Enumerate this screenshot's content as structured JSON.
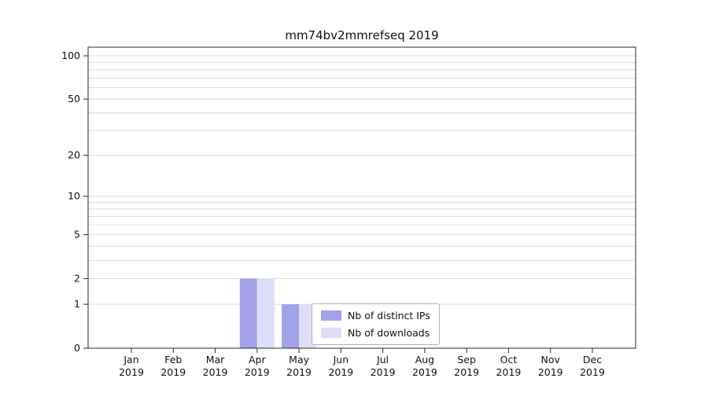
{
  "title": "mm74bv2mmrefseq 2019",
  "chart_data": {
    "type": "bar",
    "title": "mm74bv2mmrefseq 2019",
    "categories": [
      "Jan",
      "Feb",
      "Mar",
      "Apr",
      "May",
      "Jun",
      "Jul",
      "Aug",
      "Sep",
      "Oct",
      "Nov",
      "Dec"
    ],
    "category_year": "2019",
    "series": [
      {
        "name": "Nb of distinct IPs",
        "color": "#a2a2e8",
        "values": [
          0,
          0,
          0,
          2,
          1,
          0,
          0,
          0,
          0,
          0,
          0,
          0
        ]
      },
      {
        "name": "Nb of downloads",
        "color": "#dedefb",
        "values": [
          0,
          0,
          0,
          2,
          1,
          0,
          0,
          0,
          0,
          0,
          0,
          0
        ]
      }
    ],
    "y_ticks": [
      0,
      1,
      2,
      5,
      10,
      20,
      50,
      100
    ],
    "minor_gridlines": [
      3,
      4,
      6,
      7,
      8,
      9,
      30,
      40,
      60,
      70,
      80,
      90
    ],
    "scale": "log1p",
    "ylim": [
      0,
      100
    ],
    "grid": true,
    "legend_position": "lower-center-inside"
  },
  "legend": {
    "items": [
      {
        "label": "Nb of distinct IPs",
        "color": "#a2a2e8"
      },
      {
        "label": "Nb of downloads",
        "color": "#dedefb"
      }
    ]
  },
  "colors": {
    "grid": "#dcdcdc",
    "frame": "#2a2a2a",
    "tick_text": "#111111"
  }
}
